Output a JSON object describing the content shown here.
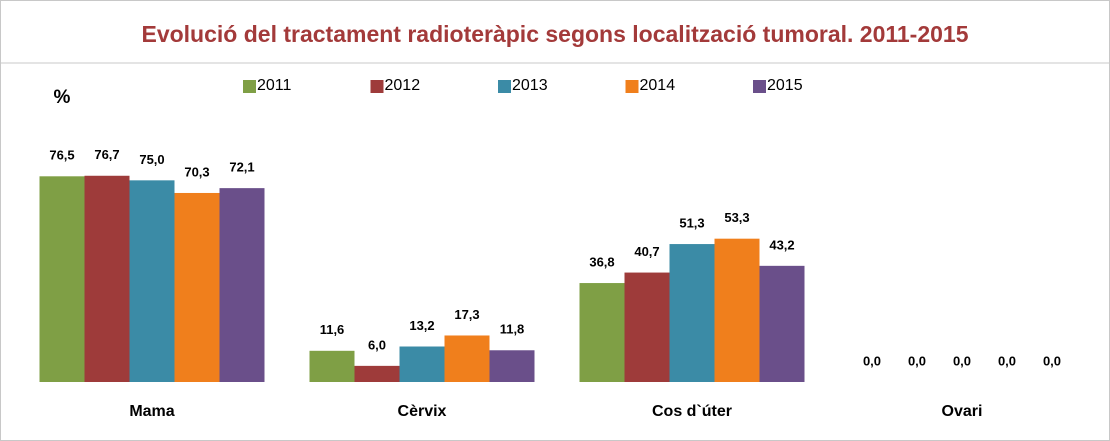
{
  "chart_data": {
    "type": "bar",
    "title": "Evolució del tractament radioteràpic segons localització tumoral. 2011-2015",
    "y_label": "%",
    "categories": [
      "Mama",
      "Cèrvix",
      "Cos d`úter",
      "Ovari"
    ],
    "series": [
      {
        "name": "2011",
        "color": "#7f9f45",
        "values": [
          76.5,
          11.6,
          36.8,
          0
        ],
        "value_labels": [
          "76,5",
          "11,6",
          "36,8",
          "0,0"
        ]
      },
      {
        "name": "2012",
        "color": "#9e3b3a",
        "values": [
          76.7,
          6.0,
          40.7,
          0
        ],
        "value_labels": [
          "76,7",
          "6,0",
          "40,7",
          "0,0"
        ]
      },
      {
        "name": "2013",
        "color": "#3b8ba6",
        "values": [
          75.0,
          13.2,
          51.3,
          0
        ],
        "value_labels": [
          "75,0",
          "13,2",
          "51,3",
          "0,0"
        ]
      },
      {
        "name": "2014",
        "color": "#f07f1c",
        "values": [
          70.3,
          17.3,
          53.3,
          0
        ],
        "value_labels": [
          "70,3",
          "17,3",
          "53,3",
          "0,0"
        ]
      },
      {
        "name": "2015",
        "color": "#6a4f8a",
        "values": [
          72.1,
          11.8,
          43.2,
          0
        ],
        "value_labels": [
          "72,1",
          "11,8",
          "43,2",
          "0,0"
        ]
      }
    ],
    "ylim": [
      0,
      90
    ]
  }
}
